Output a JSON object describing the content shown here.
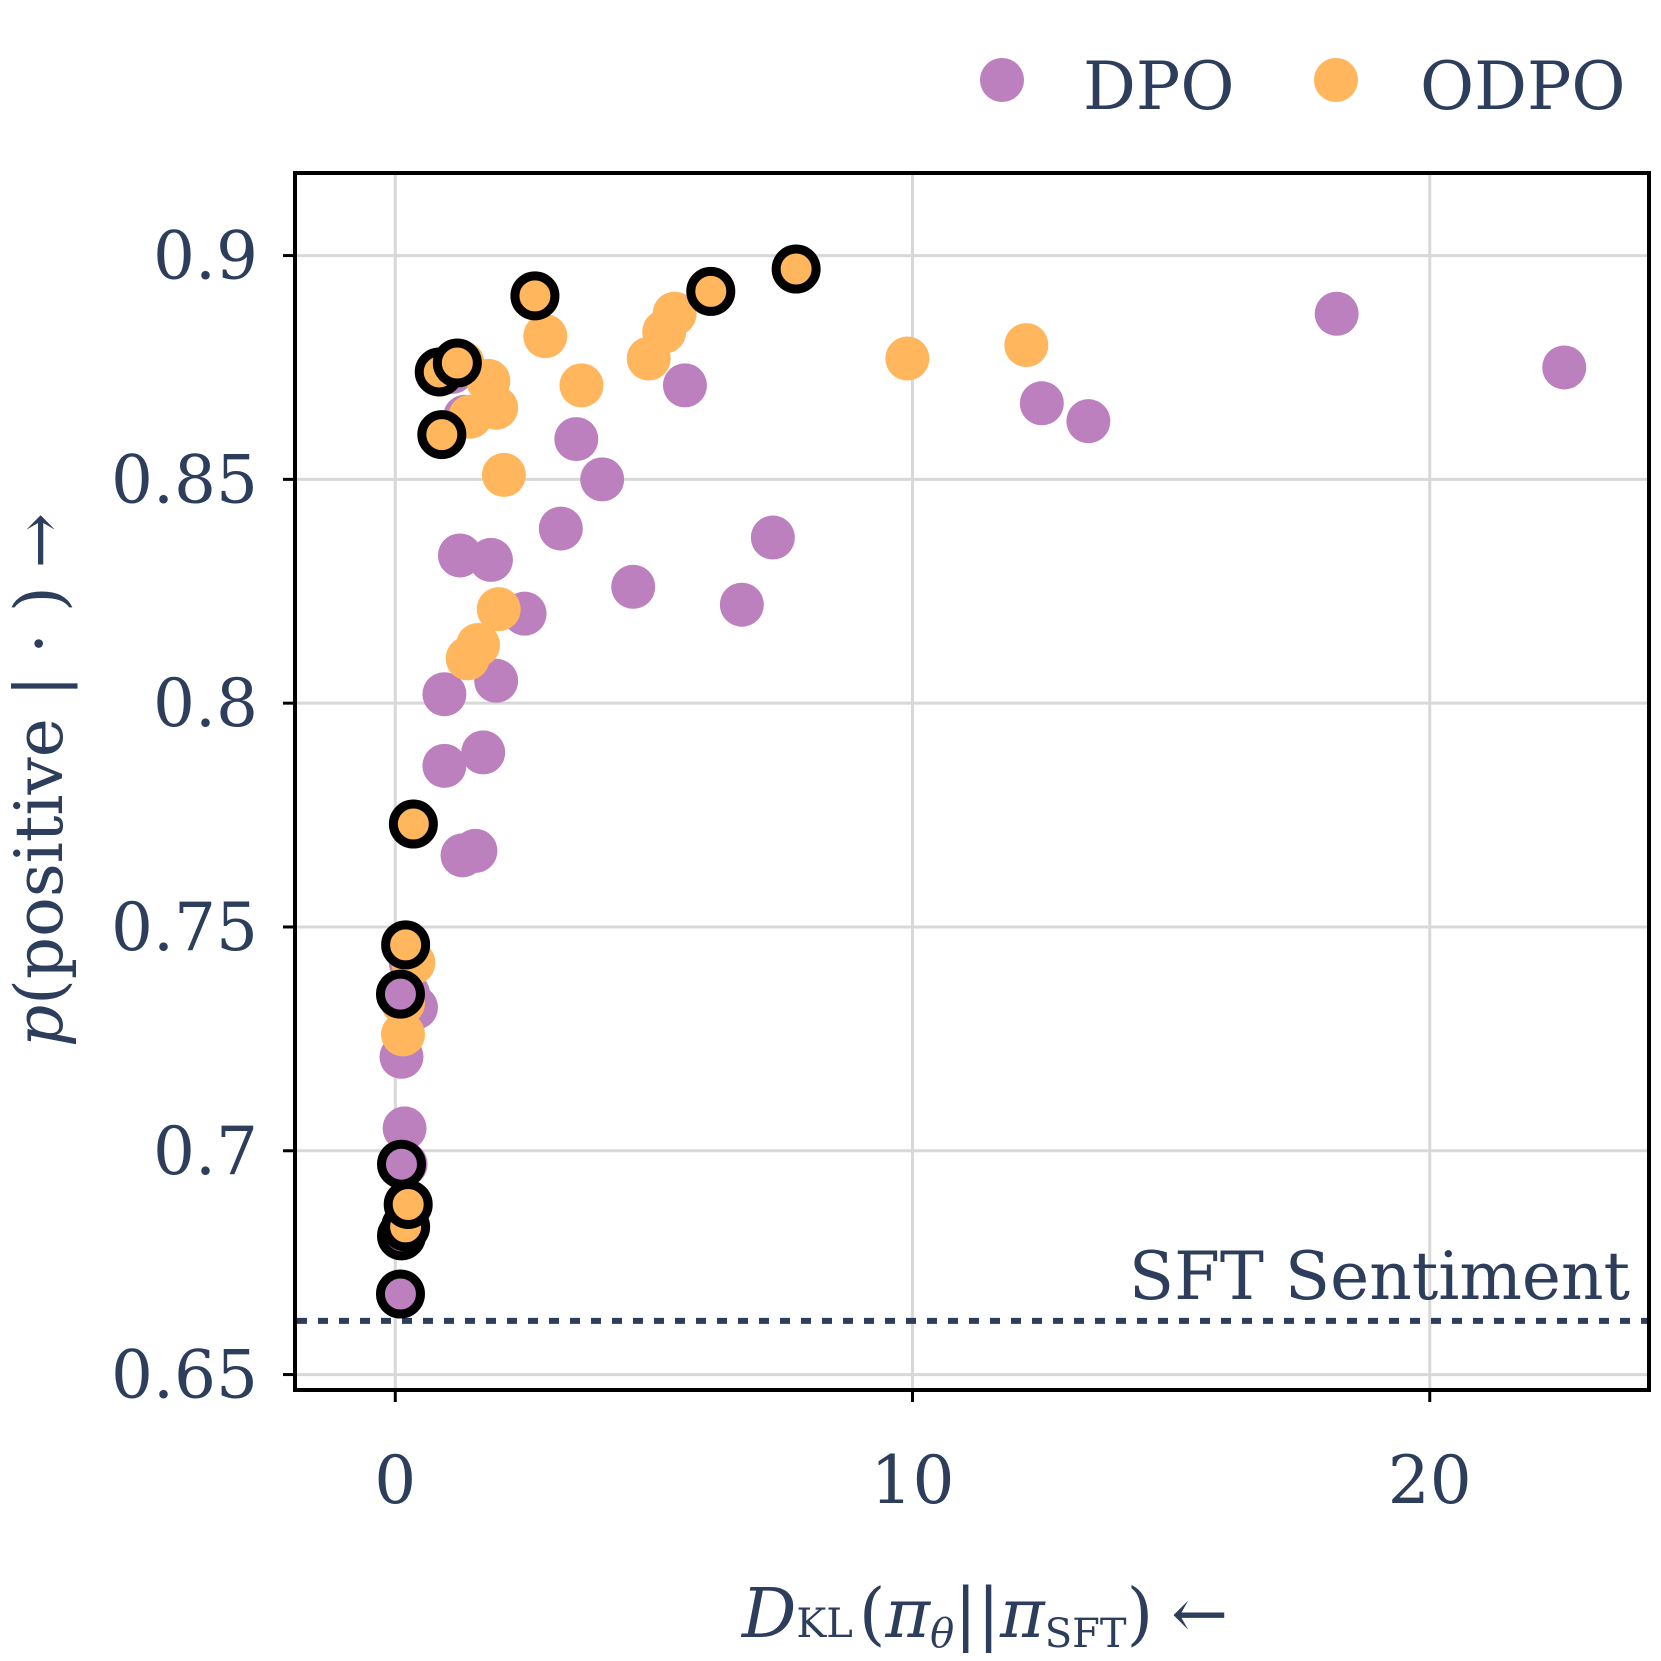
{
  "chart_data": {
    "type": "scatter",
    "title": "",
    "xlabel_parts": {
      "main": "D",
      "sub": "KL",
      "open": "(",
      "pi1": "π",
      "pi1_sub": "θ",
      "sep": "||",
      "pi2": "π",
      "pi2_sub": "SFT",
      "close": ")",
      "arrow": "←"
    },
    "ylabel_parts": {
      "p": "p",
      "text": "(positive | · )",
      "arrow": "→"
    },
    "xlim": [
      -1.9,
      24.2
    ],
    "ylim": [
      0.647,
      0.918
    ],
    "xticks": [
      0,
      10,
      20
    ],
    "xtick_labels": [
      "0",
      "10",
      "20"
    ],
    "yticks": [
      0.65,
      0.7,
      0.75,
      0.8,
      0.85,
      0.9
    ],
    "ytick_labels": [
      "0.65",
      "0.7",
      "0.75",
      "0.8",
      "0.85",
      "0.9"
    ],
    "grid": true,
    "legend_position": "top-right",
    "reference_line": {
      "y": 0.662,
      "label": "SFT Sentiment",
      "style": "dotted"
    },
    "colors": {
      "DPO": "#bb80bd",
      "ODPO": "#ffb65c",
      "outline": "#000000",
      "text": "#2c3e5c",
      "grid": "#d8d8d8",
      "frame": "#000000"
    },
    "series": [
      {
        "name": "DPO",
        "points": [
          [
            0.15,
            0.668
          ],
          [
            0.15,
            0.681
          ],
          [
            0.2,
            0.697
          ],
          [
            0.18,
            0.705
          ],
          [
            0.12,
            0.721
          ],
          [
            0.4,
            0.732
          ],
          [
            0.25,
            0.735
          ],
          [
            0.3,
            0.742
          ],
          [
            1.3,
            0.766
          ],
          [
            1.55,
            0.767
          ],
          [
            0.95,
            0.786
          ],
          [
            1.7,
            0.789
          ],
          [
            0.95,
            0.802
          ],
          [
            1.95,
            0.805
          ],
          [
            2.5,
            0.82
          ],
          [
            6.7,
            0.822
          ],
          [
            4.6,
            0.826
          ],
          [
            1.25,
            0.833
          ],
          [
            1.85,
            0.832
          ],
          [
            3.2,
            0.839
          ],
          [
            7.3,
            0.837
          ],
          [
            4.0,
            0.85
          ],
          [
            3.5,
            0.859
          ],
          [
            1.35,
            0.864
          ],
          [
            5.6,
            0.871
          ],
          [
            12.5,
            0.867
          ],
          [
            13.4,
            0.863
          ],
          [
            1.1,
            0.874
          ],
          [
            18.2,
            0.887
          ],
          [
            22.6,
            0.875
          ]
        ],
        "highlighted": [
          [
            0.1,
            0.668
          ],
          [
            0.12,
            0.681
          ],
          [
            0.12,
            0.697
          ],
          [
            0.1,
            0.735
          ]
        ]
      },
      {
        "name": "ODPO",
        "points": [
          [
            0.2,
            0.683
          ],
          [
            0.25,
            0.688
          ],
          [
            0.15,
            0.726
          ],
          [
            0.15,
            0.733
          ],
          [
            0.35,
            0.742
          ],
          [
            0.35,
            0.773
          ],
          [
            1.4,
            0.81
          ],
          [
            1.6,
            0.813
          ],
          [
            2.0,
            0.821
          ],
          [
            2.1,
            0.851
          ],
          [
            1.45,
            0.864
          ],
          [
            1.95,
            0.866
          ],
          [
            1.8,
            0.872
          ],
          [
            1.3,
            0.876
          ],
          [
            3.6,
            0.871
          ],
          [
            4.9,
            0.877
          ],
          [
            5.2,
            0.883
          ],
          [
            5.4,
            0.887
          ],
          [
            2.9,
            0.882
          ],
          [
            9.9,
            0.877
          ],
          [
            12.2,
            0.88
          ],
          [
            2.7,
            0.891
          ],
          [
            6.1,
            0.892
          ],
          [
            7.75,
            0.897
          ]
        ],
        "highlighted": [
          [
            0.2,
            0.683
          ],
          [
            0.25,
            0.688
          ],
          [
            0.2,
            0.746
          ],
          [
            0.35,
            0.773
          ],
          [
            0.9,
            0.86
          ],
          [
            0.85,
            0.874
          ],
          [
            1.2,
            0.876
          ],
          [
            2.7,
            0.891
          ],
          [
            6.1,
            0.892
          ],
          [
            7.75,
            0.897
          ]
        ]
      }
    ]
  }
}
